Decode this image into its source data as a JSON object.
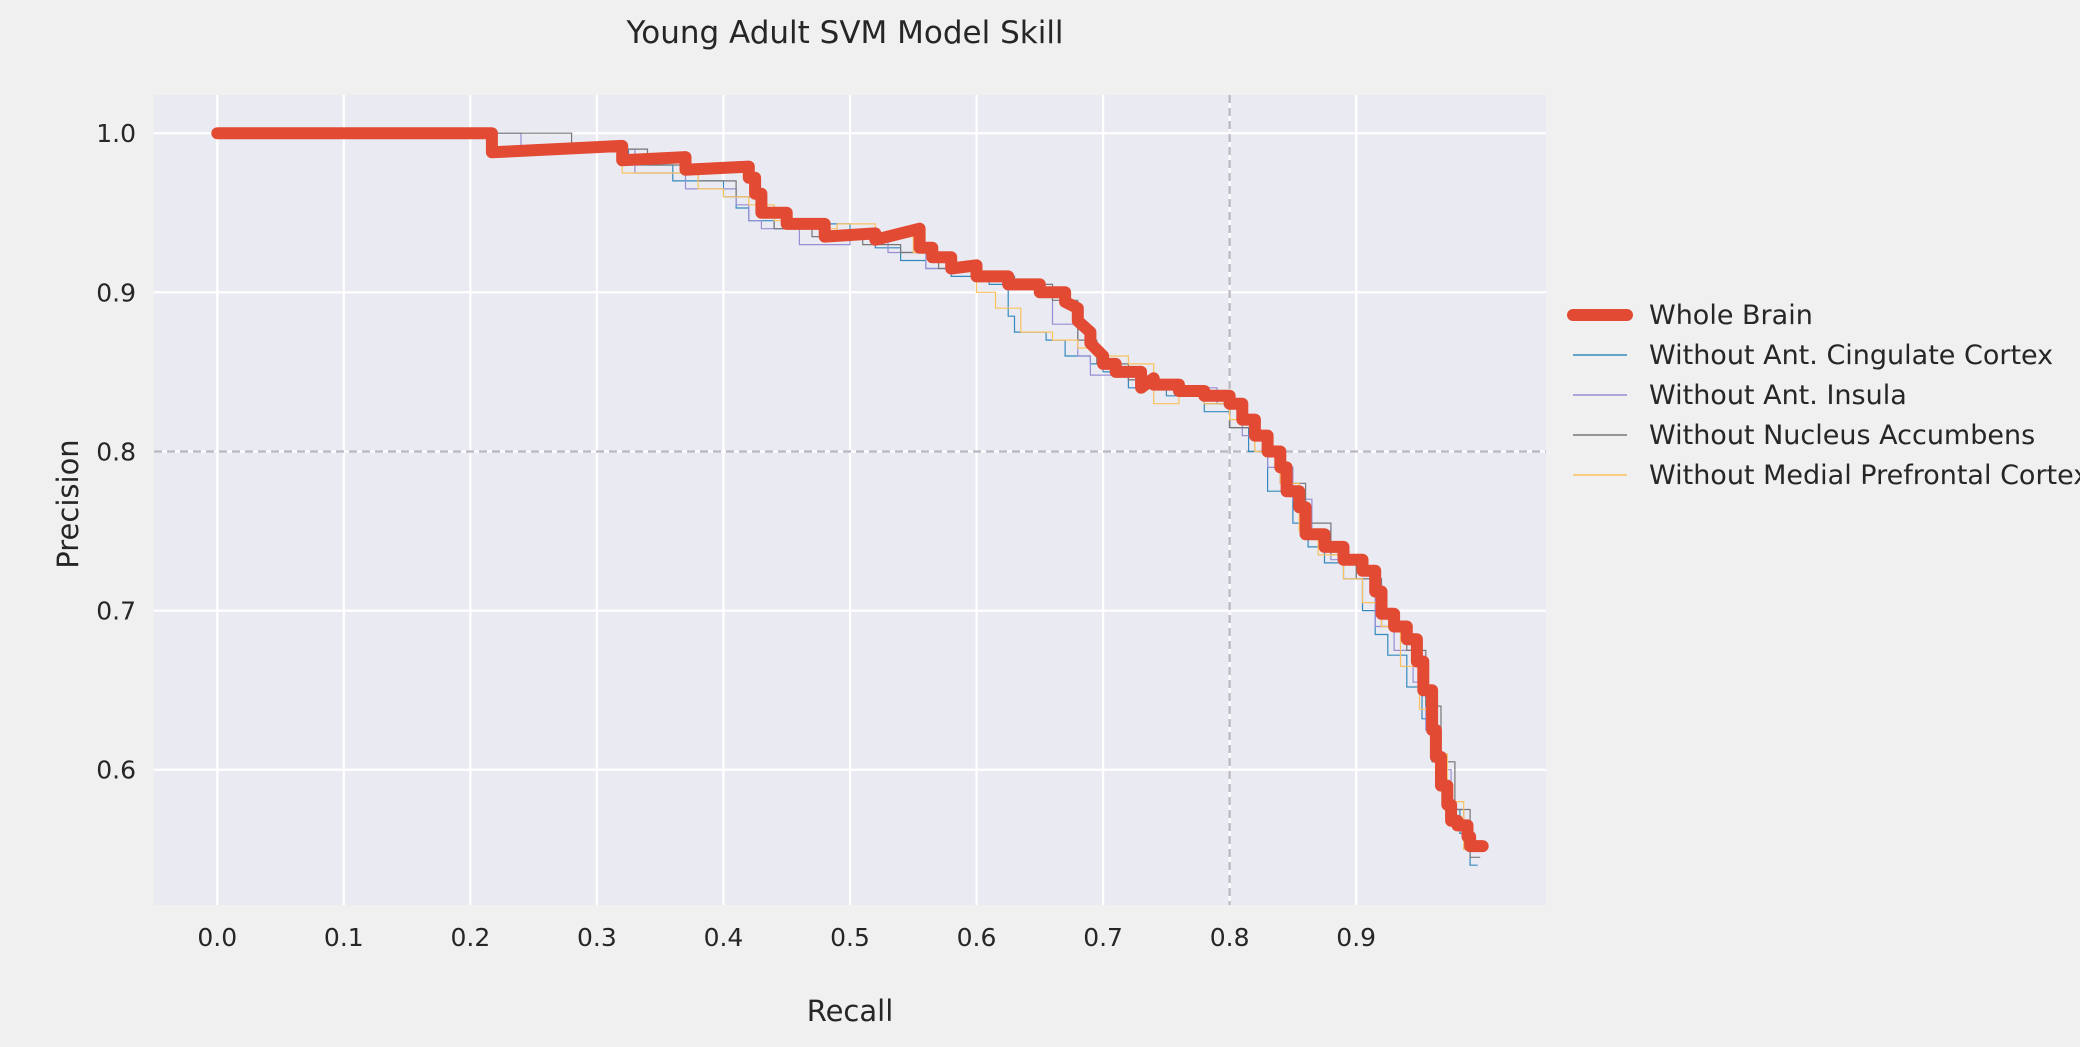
{
  "chart_data": {
    "type": "line",
    "title": "Young Adult SVM Model Skill",
    "xlabel": "Recall",
    "ylabel": "Precision",
    "xlim": [
      -0.05,
      1.05
    ],
    "ylim": [
      0.515,
      1.024
    ],
    "xticks": [
      "0.0",
      "0.1",
      "0.2",
      "0.3",
      "0.4",
      "0.5",
      "0.6",
      "0.7",
      "0.8",
      "0.9"
    ],
    "yticks": [
      "0.6",
      "0.7",
      "0.8",
      "0.9",
      "1.0"
    ],
    "grid": true,
    "legend_position": "center-right outside",
    "reference_lines": {
      "x": 0.8,
      "y": 0.8,
      "style": "dashed",
      "color": "#b8b8c0"
    },
    "series": [
      {
        "name": "Whole Brain",
        "color": "#e24a33",
        "x": [
          0.0,
          0.217,
          0.217,
          0.32,
          0.32,
          0.37,
          0.37,
          0.42,
          0.42,
          0.425,
          0.425,
          0.43,
          0.43,
          0.45,
          0.45,
          0.48,
          0.48,
          0.52,
          0.52,
          0.555,
          0.555,
          0.565,
          0.565,
          0.58,
          0.58,
          0.6,
          0.6,
          0.625,
          0.625,
          0.65,
          0.65,
          0.67,
          0.67,
          0.68,
          0.68,
          0.69,
          0.69,
          0.7,
          0.7,
          0.71,
          0.71,
          0.73,
          0.73,
          0.74,
          0.74,
          0.76,
          0.76,
          0.78,
          0.78,
          0.8,
          0.8,
          0.81,
          0.81,
          0.82,
          0.82,
          0.83,
          0.83,
          0.84,
          0.84,
          0.845,
          0.845,
          0.855,
          0.855,
          0.86,
          0.86,
          0.875,
          0.875,
          0.89,
          0.89,
          0.905,
          0.905,
          0.915,
          0.915,
          0.92,
          0.92,
          0.93,
          0.93,
          0.94,
          0.94,
          0.948,
          0.948,
          0.953,
          0.953,
          0.96,
          0.96,
          0.963,
          0.963,
          0.967,
          0.967,
          0.972,
          0.972,
          0.975,
          0.975,
          0.98,
          0.98,
          0.988,
          0.988,
          0.99,
          0.99,
          0.995,
          0.995,
          1.0
        ],
        "y": [
          1.0,
          1.0,
          0.988,
          0.992,
          0.983,
          0.985,
          0.977,
          0.979,
          0.972,
          0.972,
          0.962,
          0.962,
          0.95,
          0.95,
          0.943,
          0.943,
          0.935,
          0.937,
          0.933,
          0.94,
          0.928,
          0.928,
          0.922,
          0.922,
          0.915,
          0.917,
          0.91,
          0.91,
          0.905,
          0.905,
          0.9,
          0.9,
          0.894,
          0.89,
          0.882,
          0.875,
          0.868,
          0.86,
          0.855,
          0.855,
          0.85,
          0.85,
          0.84,
          0.846,
          0.842,
          0.842,
          0.838,
          0.838,
          0.835,
          0.835,
          0.83,
          0.83,
          0.82,
          0.82,
          0.81,
          0.81,
          0.8,
          0.8,
          0.79,
          0.79,
          0.775,
          0.775,
          0.765,
          0.765,
          0.748,
          0.748,
          0.74,
          0.74,
          0.732,
          0.732,
          0.725,
          0.725,
          0.712,
          0.712,
          0.698,
          0.698,
          0.69,
          0.69,
          0.682,
          0.682,
          0.668,
          0.668,
          0.65,
          0.65,
          0.625,
          0.625,
          0.608,
          0.608,
          0.59,
          0.59,
          0.578,
          0.578,
          0.568,
          0.568,
          0.565,
          0.565,
          0.558,
          0.558,
          0.552,
          0.552,
          0.552,
          0.552
        ]
      },
      {
        "name": "Without Ant. Cingulate Cortex",
        "color": "#348abd",
        "x": [
          0.0,
          0.217,
          0.217,
          0.325,
          0.325,
          0.36,
          0.36,
          0.4,
          0.4,
          0.41,
          0.41,
          0.42,
          0.42,
          0.44,
          0.44,
          0.47,
          0.47,
          0.5,
          0.5,
          0.52,
          0.52,
          0.54,
          0.54,
          0.56,
          0.56,
          0.58,
          0.58,
          0.61,
          0.61,
          0.625,
          0.625,
          0.63,
          0.63,
          0.655,
          0.655,
          0.67,
          0.67,
          0.69,
          0.69,
          0.7,
          0.7,
          0.72,
          0.72,
          0.75,
          0.75,
          0.78,
          0.78,
          0.8,
          0.8,
          0.815,
          0.815,
          0.83,
          0.83,
          0.85,
          0.85,
          0.862,
          0.862,
          0.875,
          0.875,
          0.89,
          0.89,
          0.905,
          0.905,
          0.915,
          0.915,
          0.925,
          0.925,
          0.94,
          0.94,
          0.952,
          0.952,
          0.96,
          0.96,
          0.968,
          0.968,
          0.975,
          0.975,
          0.982,
          0.982,
          0.99,
          0.99,
          0.996
        ],
        "y": [
          1.0,
          1.0,
          0.99,
          0.99,
          0.98,
          0.98,
          0.97,
          0.97,
          0.96,
          0.96,
          0.953,
          0.953,
          0.945,
          0.945,
          0.94,
          0.94,
          0.943,
          0.943,
          0.935,
          0.935,
          0.928,
          0.928,
          0.92,
          0.92,
          0.915,
          0.915,
          0.91,
          0.91,
          0.905,
          0.905,
          0.885,
          0.885,
          0.875,
          0.875,
          0.87,
          0.87,
          0.86,
          0.86,
          0.855,
          0.855,
          0.85,
          0.85,
          0.84,
          0.84,
          0.835,
          0.835,
          0.825,
          0.825,
          0.815,
          0.815,
          0.8,
          0.8,
          0.775,
          0.775,
          0.755,
          0.755,
          0.74,
          0.74,
          0.73,
          0.73,
          0.72,
          0.72,
          0.7,
          0.7,
          0.685,
          0.685,
          0.672,
          0.672,
          0.652,
          0.652,
          0.632,
          0.632,
          0.605,
          0.605,
          0.59,
          0.59,
          0.575,
          0.575,
          0.56,
          0.56,
          0.54,
          0.54
        ]
      },
      {
        "name": "Without Ant. Insula",
        "color": "#988ed5",
        "x": [
          0.0,
          0.24,
          0.24,
          0.33,
          0.33,
          0.37,
          0.37,
          0.41,
          0.41,
          0.42,
          0.42,
          0.43,
          0.43,
          0.46,
          0.46,
          0.5,
          0.5,
          0.53,
          0.53,
          0.56,
          0.56,
          0.6,
          0.6,
          0.63,
          0.63,
          0.65,
          0.65,
          0.66,
          0.66,
          0.68,
          0.68,
          0.69,
          0.69,
          0.72,
          0.72,
          0.76,
          0.76,
          0.79,
          0.79,
          0.81,
          0.81,
          0.83,
          0.83,
          0.85,
          0.85,
          0.865,
          0.865,
          0.88,
          0.88,
          0.9,
          0.9,
          0.915,
          0.915,
          0.93,
          0.93,
          0.945,
          0.945,
          0.955,
          0.955,
          0.965,
          0.965,
          0.975,
          0.975,
          0.985,
          0.985,
          0.995
        ],
        "y": [
          1.0,
          1.0,
          0.99,
          0.99,
          0.975,
          0.975,
          0.965,
          0.965,
          0.955,
          0.955,
          0.945,
          0.945,
          0.94,
          0.94,
          0.93,
          0.93,
          0.935,
          0.935,
          0.925,
          0.925,
          0.915,
          0.915,
          0.91,
          0.91,
          0.905,
          0.905,
          0.9,
          0.9,
          0.88,
          0.88,
          0.86,
          0.86,
          0.848,
          0.848,
          0.845,
          0.845,
          0.84,
          0.84,
          0.83,
          0.83,
          0.81,
          0.81,
          0.79,
          0.79,
          0.77,
          0.77,
          0.75,
          0.75,
          0.732,
          0.732,
          0.72,
          0.72,
          0.69,
          0.69,
          0.675,
          0.675,
          0.655,
          0.655,
          0.625,
          0.625,
          0.6,
          0.6,
          0.575,
          0.575,
          0.55,
          0.55
        ]
      },
      {
        "name": "Without Nucleus Accumbens",
        "color": "#777777",
        "x": [
          0.0,
          0.28,
          0.28,
          0.34,
          0.34,
          0.38,
          0.38,
          0.41,
          0.41,
          0.43,
          0.43,
          0.44,
          0.44,
          0.47,
          0.47,
          0.51,
          0.51,
          0.54,
          0.54,
          0.57,
          0.57,
          0.6,
          0.6,
          0.63,
          0.63,
          0.66,
          0.66,
          0.68,
          0.68,
          0.695,
          0.695,
          0.72,
          0.72,
          0.75,
          0.75,
          0.78,
          0.78,
          0.8,
          0.8,
          0.82,
          0.82,
          0.84,
          0.84,
          0.86,
          0.86,
          0.88,
          0.88,
          0.9,
          0.9,
          0.92,
          0.92,
          0.94,
          0.94,
          0.955,
          0.955,
          0.967,
          0.967,
          0.978,
          0.978,
          0.99,
          0.99,
          0.998
        ],
        "y": [
          1.0,
          1.0,
          0.99,
          0.99,
          0.98,
          0.98,
          0.97,
          0.97,
          0.96,
          0.96,
          0.95,
          0.95,
          0.94,
          0.94,
          0.935,
          0.935,
          0.93,
          0.93,
          0.925,
          0.925,
          0.915,
          0.915,
          0.91,
          0.91,
          0.905,
          0.905,
          0.895,
          0.895,
          0.87,
          0.87,
          0.855,
          0.855,
          0.845,
          0.845,
          0.84,
          0.84,
          0.83,
          0.83,
          0.815,
          0.815,
          0.8,
          0.8,
          0.78,
          0.78,
          0.755,
          0.755,
          0.735,
          0.735,
          0.72,
          0.72,
          0.69,
          0.69,
          0.675,
          0.675,
          0.64,
          0.64,
          0.605,
          0.605,
          0.575,
          0.575,
          0.545,
          0.545
        ]
      },
      {
        "name": "Without Medial Prefrontal Cortex",
        "color": "#fbc15e",
        "x": [
          0.0,
          0.217,
          0.217,
          0.32,
          0.32,
          0.38,
          0.38,
          0.4,
          0.4,
          0.42,
          0.42,
          0.44,
          0.44,
          0.47,
          0.47,
          0.49,
          0.49,
          0.52,
          0.52,
          0.55,
          0.55,
          0.58,
          0.58,
          0.6,
          0.6,
          0.615,
          0.615,
          0.635,
          0.635,
          0.66,
          0.66,
          0.68,
          0.68,
          0.7,
          0.7,
          0.72,
          0.72,
          0.74,
          0.74,
          0.76,
          0.76,
          0.78,
          0.78,
          0.8,
          0.8,
          0.82,
          0.82,
          0.84,
          0.84,
          0.855,
          0.855,
          0.87,
          0.87,
          0.89,
          0.89,
          0.905,
          0.905,
          0.92,
          0.92,
          0.935,
          0.935,
          0.95,
          0.95,
          0.96,
          0.96,
          0.972,
          0.972,
          0.985,
          0.985,
          0.995
        ],
        "y": [
          1.0,
          1.0,
          0.99,
          0.99,
          0.975,
          0.975,
          0.965,
          0.965,
          0.96,
          0.96,
          0.955,
          0.955,
          0.945,
          0.945,
          0.94,
          0.94,
          0.943,
          0.943,
          0.935,
          0.935,
          0.925,
          0.925,
          0.915,
          0.915,
          0.9,
          0.9,
          0.89,
          0.89,
          0.875,
          0.875,
          0.87,
          0.87,
          0.865,
          0.865,
          0.86,
          0.86,
          0.855,
          0.855,
          0.83,
          0.83,
          0.835,
          0.835,
          0.83,
          0.83,
          0.82,
          0.82,
          0.8,
          0.8,
          0.78,
          0.78,
          0.75,
          0.75,
          0.735,
          0.735,
          0.72,
          0.72,
          0.705,
          0.705,
          0.69,
          0.69,
          0.665,
          0.665,
          0.638,
          0.638,
          0.61,
          0.61,
          0.58,
          0.58,
          0.55,
          0.55
        ]
      }
    ]
  }
}
